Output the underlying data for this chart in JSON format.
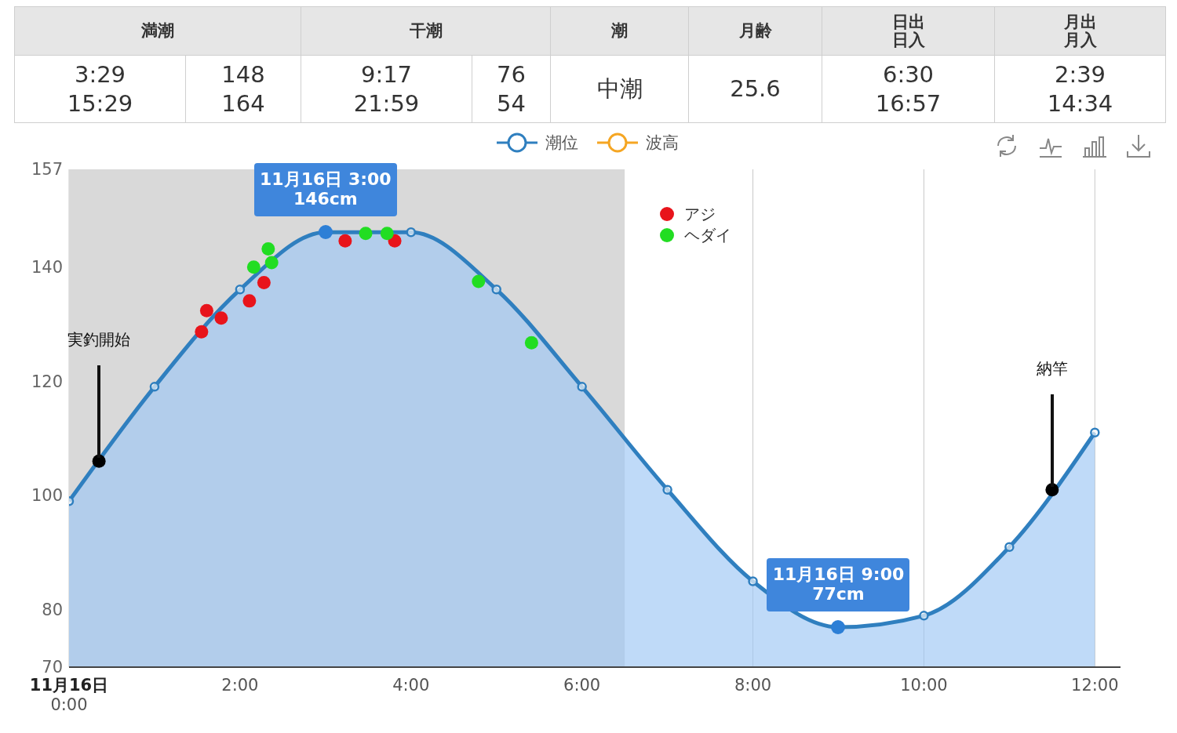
{
  "chart_data": [
    {
      "type": "other",
      "categories": [
        "満潮",
        "干潮",
        "潮",
        "月齢",
        "日出日入",
        "月出月入"
      ],
      "annotations": [
        "3:29\n15:29",
        "148\n164",
        "9:17\n21:59",
        "76\n54",
        "中潮",
        "25.6",
        "6:30\n16:57",
        "2:39\n14:34"
      ]
    },
    {
      "type": "area",
      "xlim": [
        0,
        12.3
      ],
      "ylim": [
        70,
        157
      ],
      "xticks": [
        {
          "value": 0,
          "label": "11月16日\n0:00"
        },
        {
          "value": 2,
          "label": "2:00"
        },
        {
          "value": 4,
          "label": "4:00"
        },
        {
          "value": 6,
          "label": "6:00"
        },
        {
          "value": 8,
          "label": "8:00"
        },
        {
          "value": 10,
          "label": "10:00"
        },
        {
          "value": 12,
          "label": "12:00"
        }
      ],
      "yticks": [
        70,
        80,
        100,
        120,
        140,
        157
      ],
      "grid": "x",
      "legend": "top",
      "marker": "circle",
      "bands": [
        {
          "axis": "x",
          "from": 0,
          "to": 6.5,
          "color": "#d9d9d9"
        }
      ],
      "series": [
        {
          "name": "潮位",
          "type": "area",
          "color": "#2f7fbf",
          "x": [
            0,
            1,
            2,
            3,
            4,
            5,
            6,
            7,
            8,
            9,
            10,
            11,
            12
          ],
          "values": [
            99,
            119,
            136,
            146,
            146,
            136,
            119,
            101,
            85,
            77,
            79,
            91,
            111
          ]
        },
        {
          "name": "波高",
          "type": "line",
          "color": "#f5a623"
        },
        {
          "name": "アジ",
          "type": "scatter",
          "color": "#e8141b",
          "x": [
            1.55,
            1.61,
            1.78,
            2.11,
            2.28,
            3.23,
            3.81
          ],
          "values": [
            128.6,
            132.3,
            131,
            134,
            137.2,
            144.5,
            144.5
          ]
        },
        {
          "name": "ヘダイ",
          "type": "scatter",
          "color": "#22dd22",
          "x": [
            2.16,
            2.33,
            2.37,
            3.47,
            3.72,
            4.79,
            5.41
          ],
          "values": [
            139.9,
            143.1,
            140.7,
            145.8,
            145.8,
            137.4,
            126.7
          ]
        },
        {
          "type": "scatter",
          "color": "#000000",
          "x": [
            0.35,
            11.5
          ],
          "values": [
            106,
            101
          ]
        }
      ],
      "annotations": [
        {
          "text": "11月16日 3:00\n146cm",
          "x": 3,
          "y": 146
        },
        {
          "text": "11月16日 9:00\n77cm",
          "x": 9,
          "y": 77
        },
        "実釣開始",
        "納竿"
      ]
    }
  ]
}
